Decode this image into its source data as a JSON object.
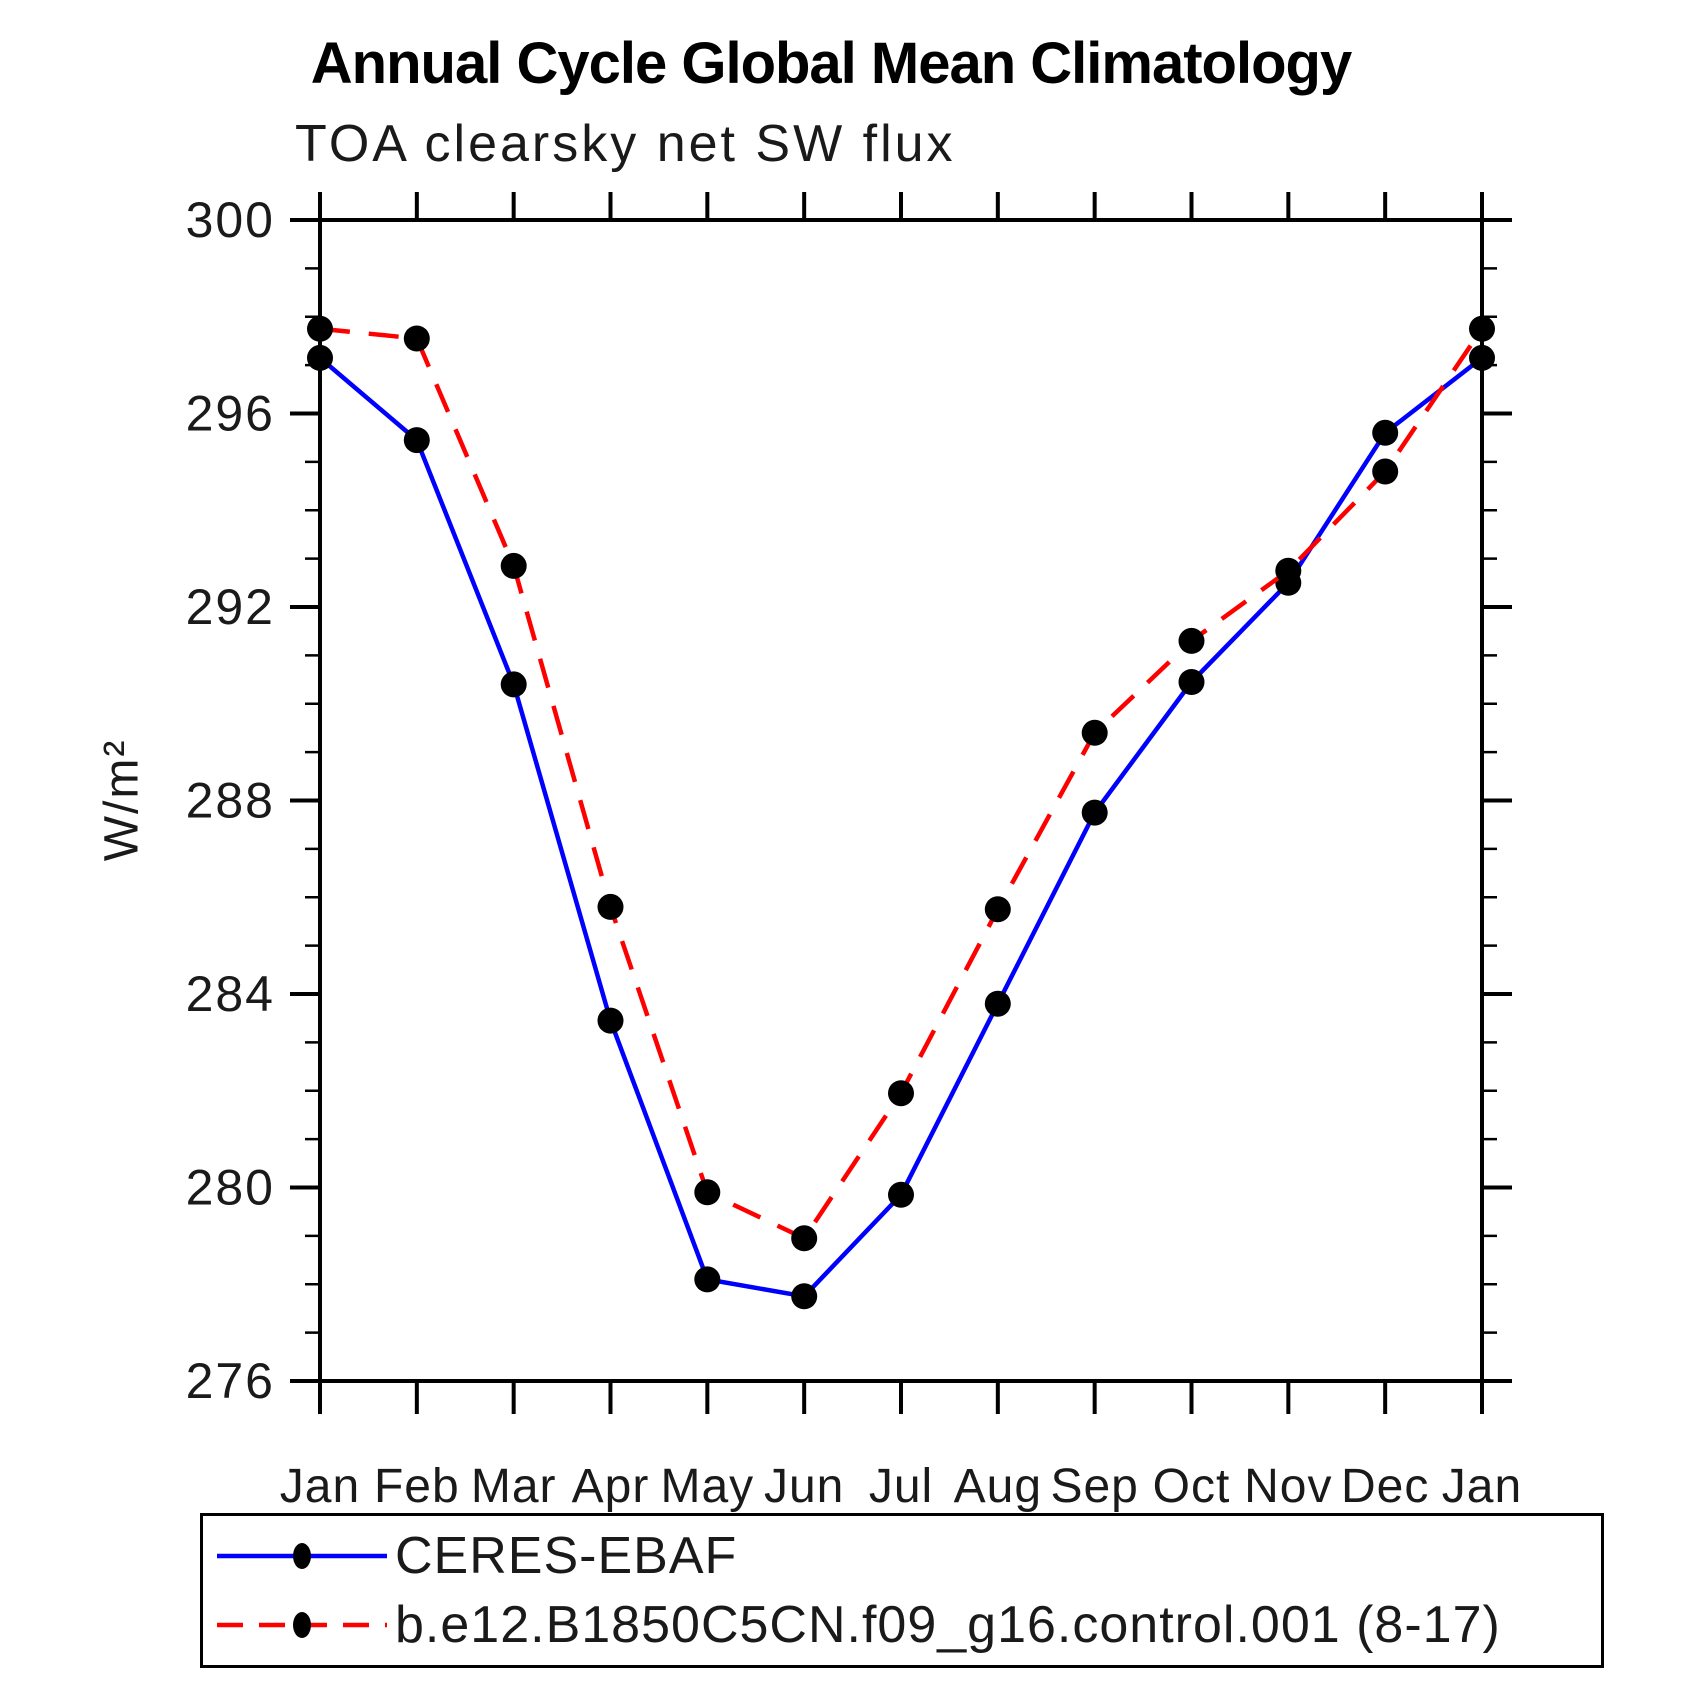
{
  "page": {
    "title": "Annual Cycle Global Mean Climatology"
  },
  "chart_data": {
    "type": "line",
    "title": "Annual Cycle Global Mean Climatology",
    "subtitle": "TOA clearsky net SW flux",
    "xlabel": "",
    "ylabel": "W/m²",
    "categories": [
      "Jan",
      "Feb",
      "Mar",
      "Apr",
      "May",
      "Jun",
      "Jul",
      "Aug",
      "Sep",
      "Oct",
      "Nov",
      "Dec",
      "Jan"
    ],
    "ylim": [
      276,
      300
    ],
    "yticks_major": [
      276,
      280,
      284,
      288,
      292,
      296,
      300
    ],
    "ytick_minor_interval": 1,
    "grid": false,
    "legend_position": "bottom",
    "marker": "filled-circle",
    "marker_color": "#000000",
    "axis_color": "#000000",
    "series": [
      {
        "name": "CERES-EBAF",
        "color": "#0000ff",
        "style": "solid",
        "values": [
          297.15,
          295.45,
          290.4,
          283.45,
          278.1,
          277.75,
          279.85,
          283.8,
          287.75,
          290.45,
          292.5,
          295.6,
          297.15
        ]
      },
      {
        "name": "b.e12.B1850C5CN.f09_g16.control.001 (8-17)",
        "color": "#ff0000",
        "style": "dashed",
        "values": [
          297.75,
          297.55,
          292.85,
          285.8,
          279.9,
          278.95,
          281.95,
          285.75,
          289.4,
          291.3,
          292.75,
          294.8,
          297.75
        ]
      }
    ]
  }
}
